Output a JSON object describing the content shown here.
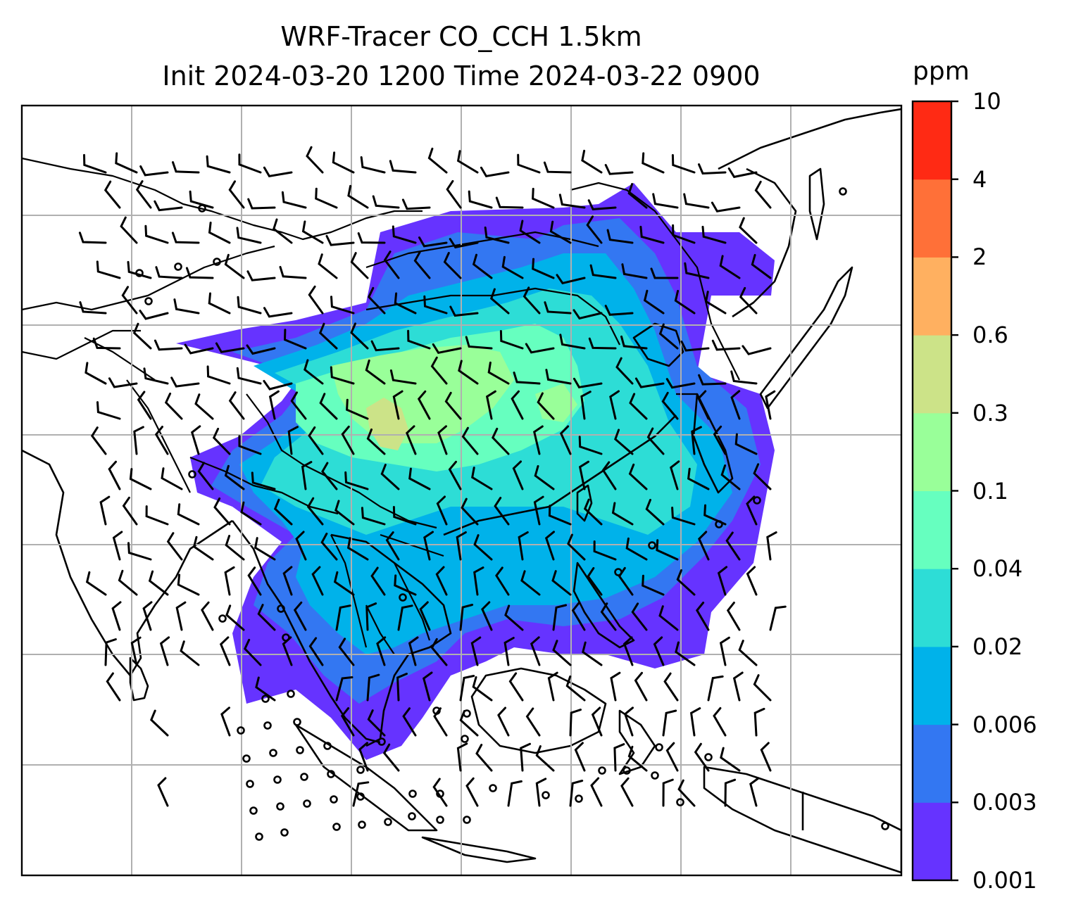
{
  "title": {
    "line1": "WRF-Tracer CO_CCH 1.5km",
    "line2": "Init 2024-03-20 1200 Time 2024-03-22 0900"
  },
  "colorbar": {
    "unit": "ppm",
    "levels": [
      "0.001",
      "0.003",
      "0.006",
      "0.02",
      "0.04",
      "0.1",
      "0.3",
      "0.6",
      "2",
      "4",
      "10"
    ],
    "colors": [
      "#6633ff",
      "#3377f2",
      "#00b2ea",
      "#2dddd6",
      "#66ffbf",
      "#99ff99",
      "#cce388",
      "#ffb060",
      "#ff7038",
      "#ff2a14"
    ]
  },
  "map": {
    "coastline_color": "#000000",
    "grid_color": "#b0b0b0",
    "gridlines": true,
    "wind_barbs": true
  }
}
